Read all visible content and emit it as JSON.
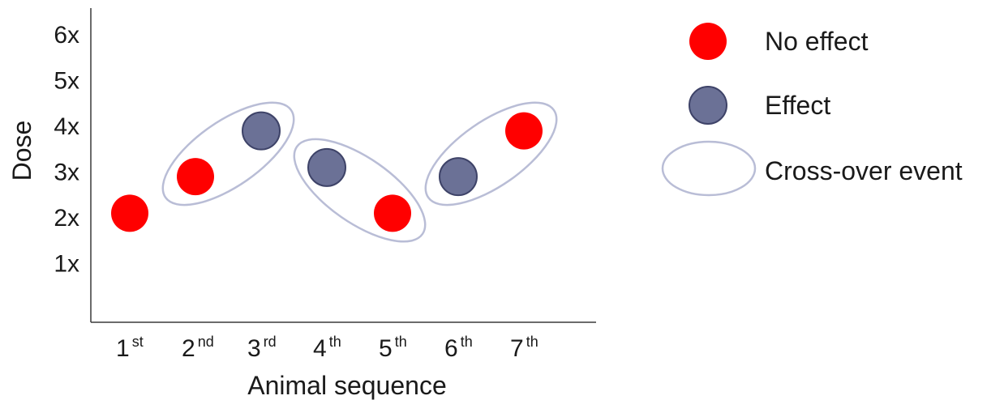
{
  "chart_data": {
    "type": "scatter",
    "xlabel": "Animal sequence",
    "ylabel": "Dose",
    "y_ticks": [
      "1x",
      "2x",
      "3x",
      "4x",
      "5x",
      "6x"
    ],
    "x_ticks": [
      {
        "num": "1",
        "sup": "st"
      },
      {
        "num": "2",
        "sup": "nd"
      },
      {
        "num": "3",
        "sup": "rd"
      },
      {
        "num": "4",
        "sup": "th"
      },
      {
        "num": "5",
        "sup": "th"
      },
      {
        "num": "6",
        "sup": "th"
      },
      {
        "num": "7",
        "sup": "th"
      }
    ],
    "ylim": [
      0,
      6.5
    ],
    "xlim": [
      0,
      8
    ],
    "grid": false,
    "points": [
      {
        "x": 1,
        "y": 2.1,
        "outcome": "No effect"
      },
      {
        "x": 2,
        "y": 2.9,
        "outcome": "No effect"
      },
      {
        "x": 3,
        "y": 3.9,
        "outcome": "Effect"
      },
      {
        "x": 4,
        "y": 3.1,
        "outcome": "Effect"
      },
      {
        "x": 5,
        "y": 2.1,
        "outcome": "No effect"
      },
      {
        "x": 6,
        "y": 2.9,
        "outcome": "Effect"
      },
      {
        "x": 7,
        "y": 3.9,
        "outcome": "No effect"
      }
    ],
    "crossover_events": [
      [
        2,
        3
      ],
      [
        4,
        5
      ],
      [
        6,
        7
      ]
    ],
    "legend": {
      "position": "right",
      "entries": [
        {
          "label": "No effect",
          "marker": "red-dot"
        },
        {
          "label": "Effect",
          "marker": "blue-gray-dot"
        },
        {
          "label": "Cross-over event",
          "marker": "ellipse-outline"
        }
      ]
    },
    "colors": {
      "no_effect": "#ff0000",
      "effect": "#6b7196",
      "effect_stroke": "#3e4368",
      "ellipse": "#b9bdd6",
      "axis": "#3a3a3a"
    }
  }
}
